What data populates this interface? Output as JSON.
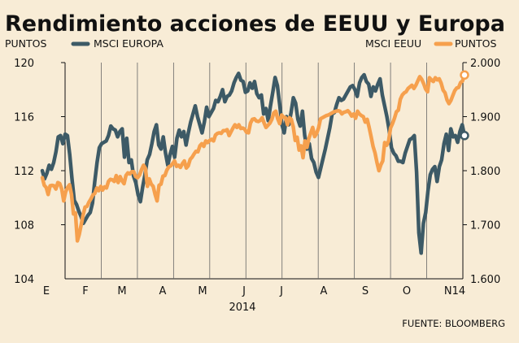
{
  "chart_data": {
    "type": "line",
    "title": "Rendimiento acciones de EEUU y Europa",
    "source": "FUENTE: BLOOMBERG",
    "year_label": "2014",
    "months": [
      "E",
      "F",
      "M",
      "A",
      "M",
      "J",
      "J",
      "A",
      "S",
      "O",
      "N14"
    ],
    "grid": true,
    "left_axis": {
      "unit": "PUNTOS",
      "ylim": [
        104,
        120
      ],
      "ticks": [
        "104",
        "108",
        "112",
        "116",
        "120"
      ]
    },
    "right_axis": {
      "unit": "PUNTOS",
      "ylim": [
        1600,
        2000
      ],
      "ticks": [
        "1.600",
        "1.700",
        "1.800",
        "1.900",
        "2.000"
      ]
    },
    "legend": {
      "left": [
        "PUNTOS",
        "MSCI EUROPA"
      ],
      "right": [
        "MSCI EEUU",
        "PUNTOS"
      ]
    },
    "series": [
      {
        "name": "MSCI EUROPA",
        "axis": "left",
        "color": "#3d5a66",
        "end_marker": true,
        "values": [
          112.0,
          111.4,
          111.8,
          112.4,
          112.1,
          112.6,
          113.4,
          114.5,
          114.6,
          114.0,
          114.7,
          114.6,
          113.2,
          111.4,
          109.8,
          109.5,
          109.0,
          108.6,
          108.1,
          108.4,
          108.7,
          108.9,
          109.6,
          111.2,
          112.6,
          113.7,
          114.0,
          114.1,
          114.2,
          114.6,
          115.3,
          115.1,
          115.0,
          114.5,
          114.9,
          115.1,
          113.0,
          114.4,
          112.6,
          112.8,
          111.6,
          111.1,
          110.2,
          109.7,
          110.8,
          111.7,
          112.8,
          113.2,
          114.0,
          114.9,
          115.4,
          113.9,
          113.6,
          114.5,
          113.3,
          112.4,
          113.2,
          113.8,
          113.0,
          114.4,
          115.0,
          114.5,
          114.9,
          113.9,
          114.8,
          115.6,
          116.2,
          116.8,
          116.0,
          115.4,
          114.8,
          115.6,
          116.7,
          116.0,
          116.3,
          116.6,
          117.2,
          117.1,
          117.5,
          118.0,
          117.1,
          117.5,
          117.6,
          117.9,
          118.5,
          118.9,
          119.2,
          118.7,
          118.6,
          117.8,
          117.9,
          118.5,
          118.1,
          118.6,
          117.7,
          117.4,
          117.6,
          116.2,
          116.6,
          115.7,
          116.8,
          117.8,
          118.9,
          118.3,
          116.9,
          115.4,
          114.8,
          116.0,
          115.4,
          116.3,
          117.4,
          117.0,
          115.8,
          115.3,
          116.4,
          114.6,
          113.6,
          114.0,
          112.9,
          112.6,
          111.9,
          111.5,
          112.2,
          112.9,
          113.6,
          114.4,
          115.2,
          116.2,
          116.3,
          116.9,
          117.4,
          117.2,
          117.3,
          117.6,
          117.9,
          118.2,
          118.3,
          118.0,
          117.5,
          118.5,
          118.9,
          119.1,
          118.6,
          118.4,
          117.5,
          118.2,
          117.9,
          118.4,
          118.8,
          117.6,
          116.8,
          116.0,
          115.0,
          113.7,
          113.3,
          113.1,
          112.7,
          112.7,
          112.6,
          113.3,
          113.8,
          114.3,
          114.4,
          114.6,
          111.9,
          107.4,
          105.9,
          108.1,
          108.9,
          110.5,
          111.7,
          112.1,
          112.3,
          111.2,
          112.3,
          112.8,
          114.0,
          114.7,
          113.5,
          115.1,
          114.5,
          114.6,
          114.1,
          114.9,
          115.4,
          114.6
        ]
      },
      {
        "name": "MSCI EEUU",
        "axis": "right",
        "color": "#f6a04d",
        "end_marker": true,
        "values": [
          1787,
          1773,
          1769,
          1756,
          1772,
          1773,
          1772,
          1766,
          1778,
          1776,
          1766,
          1744,
          1761,
          1769,
          1774,
          1756,
          1720,
          1722,
          1670,
          1682,
          1700,
          1718,
          1733,
          1734,
          1742,
          1748,
          1755,
          1758,
          1768,
          1763,
          1771,
          1764,
          1770,
          1768,
          1780,
          1784,
          1783,
          1780,
          1791,
          1778,
          1789,
          1781,
          1776,
          1791,
          1796,
          1794,
          1798,
          1798,
          1789,
          1787,
          1792,
          1802,
          1810,
          1804,
          1771,
          1785,
          1775,
          1771,
          1756,
          1744,
          1773,
          1775,
          1790,
          1791,
          1801,
          1807,
          1809,
          1813,
          1818,
          1808,
          1810,
          1806,
          1813,
          1818,
          1805,
          1809,
          1821,
          1825,
          1831,
          1836,
          1835,
          1846,
          1850,
          1845,
          1855,
          1852,
          1856,
          1858,
          1855,
          1866,
          1869,
          1870,
          1869,
          1874,
          1874,
          1876,
          1865,
          1872,
          1879,
          1885,
          1880,
          1885,
          1878,
          1879,
          1877,
          1871,
          1870,
          1888,
          1895,
          1896,
          1892,
          1891,
          1893,
          1898,
          1888,
          1880,
          1884,
          1888,
          1895,
          1907,
          1910,
          1896,
          1887,
          1903,
          1899,
          1898,
          1885,
          1898,
          1895,
          1881,
          1856,
          1862,
          1838,
          1846,
          1824,
          1855,
          1843,
          1860,
          1870,
          1880,
          1863,
          1869,
          1879,
          1896,
          1898,
          1900,
          1902,
          1903,
          1905,
          1907,
          1909,
          1910,
          1911,
          1910,
          1905,
          1908,
          1909,
          1911,
          1907,
          1901,
          1905,
          1897,
          1910,
          1905,
          1902,
          1900,
          1890,
          1895,
          1880,
          1863,
          1845,
          1833,
          1815,
          1800,
          1811,
          1818,
          1852,
          1847,
          1855,
          1879,
          1887,
          1897,
          1909,
          1912,
          1932,
          1940,
          1944,
          1946,
          1952,
          1955,
          1958,
          1952,
          1958,
          1966,
          1974,
          1969,
          1961,
          1951,
          1946,
          1972,
          1968,
          1965,
          1972,
          1968,
          1970,
          1962,
          1949,
          1944,
          1931,
          1924,
          1930,
          1939,
          1948,
          1953,
          1954,
          1963,
          1966,
          1977
        ]
      }
    ]
  }
}
